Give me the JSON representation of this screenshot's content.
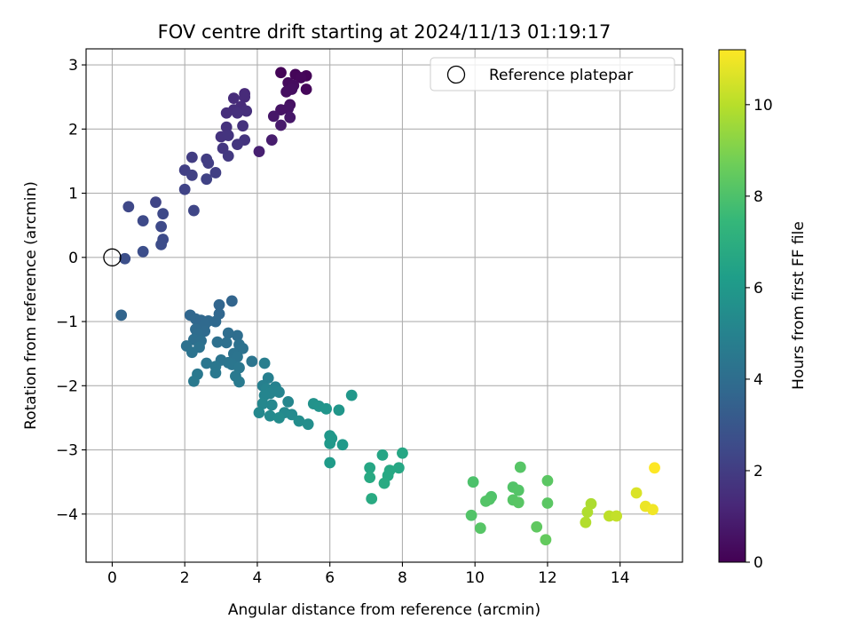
{
  "chart_data": {
    "type": "scatter",
    "title": "FOV centre drift starting at 2024/11/13 01:19:17",
    "xlabel": "Angular distance from reference (arcmin)",
    "ylabel": "Rotation from reference (arcmin)",
    "xlim": [
      -0.72,
      15.72
    ],
    "ylim": [
      -4.75,
      3.25
    ],
    "xticks": [
      0,
      2,
      4,
      6,
      8,
      10,
      12,
      14
    ],
    "yticks": [
      3,
      2,
      1,
      0,
      -1,
      -2,
      -3,
      -4
    ],
    "xtick_labels": [
      "0",
      "2",
      "4",
      "6",
      "8",
      "10",
      "12",
      "14"
    ],
    "ytick_labels": [
      "3",
      "2",
      "1",
      "0",
      "−1",
      "−2",
      "−3",
      "−4"
    ],
    "grid": true,
    "legend": {
      "placement": "top-right",
      "label": "Reference platepar"
    },
    "reference_point": {
      "x": 0,
      "y": 0
    },
    "colorbar": {
      "label": "Hours from first FF file",
      "range": [
        0,
        11.2
      ],
      "ticks": [
        0,
        2,
        4,
        6,
        8,
        10
      ],
      "tick_labels": [
        "0",
        "2",
        "4",
        "6",
        "8",
        "10"
      ],
      "colormap": [
        "#440154",
        "#482878",
        "#3e4a89",
        "#31688e",
        "#26828e",
        "#1f9e89",
        "#35b779",
        "#6ece58",
        "#b5de2b",
        "#fde725"
      ]
    },
    "points": [
      {
        "x": 4.65,
        "y": 2.88,
        "t": 0.1
      },
      {
        "x": 5.05,
        "y": 2.85,
        "t": 0.15
      },
      {
        "x": 5.35,
        "y": 2.83,
        "t": 0.1
      },
      {
        "x": 5.2,
        "y": 2.8,
        "t": 0.2
      },
      {
        "x": 4.85,
        "y": 2.72,
        "t": 0.3
      },
      {
        "x": 5.0,
        "y": 2.68,
        "t": 0.35
      },
      {
        "x": 4.95,
        "y": 2.62,
        "t": 0.4
      },
      {
        "x": 4.8,
        "y": 2.58,
        "t": 0.4
      },
      {
        "x": 5.35,
        "y": 2.62,
        "t": 0.2
      },
      {
        "x": 4.9,
        "y": 2.38,
        "t": 0.5
      },
      {
        "x": 4.85,
        "y": 2.32,
        "t": 0.6
      },
      {
        "x": 4.65,
        "y": 2.3,
        "t": 0.6
      },
      {
        "x": 4.45,
        "y": 2.2,
        "t": 0.7
      },
      {
        "x": 4.9,
        "y": 2.18,
        "t": 0.7
      },
      {
        "x": 4.65,
        "y": 2.06,
        "t": 0.8
      },
      {
        "x": 4.4,
        "y": 1.83,
        "t": 0.9
      },
      {
        "x": 4.05,
        "y": 1.65,
        "t": 1.0
      },
      {
        "x": 3.65,
        "y": 2.55,
        "t": 1.3
      },
      {
        "x": 3.65,
        "y": 2.5,
        "t": 1.35
      },
      {
        "x": 3.35,
        "y": 2.48,
        "t": 1.4
      },
      {
        "x": 3.55,
        "y": 2.35,
        "t": 1.4
      },
      {
        "x": 3.35,
        "y": 2.3,
        "t": 1.45
      },
      {
        "x": 3.7,
        "y": 2.28,
        "t": 1.5
      },
      {
        "x": 3.15,
        "y": 2.25,
        "t": 1.5
      },
      {
        "x": 3.45,
        "y": 2.25,
        "t": 1.55
      },
      {
        "x": 3.6,
        "y": 2.05,
        "t": 1.6
      },
      {
        "x": 3.15,
        "y": 2.03,
        "t": 1.6
      },
      {
        "x": 3.0,
        "y": 1.88,
        "t": 1.65
      },
      {
        "x": 3.2,
        "y": 1.9,
        "t": 1.7
      },
      {
        "x": 3.65,
        "y": 1.83,
        "t": 1.7
      },
      {
        "x": 3.45,
        "y": 1.76,
        "t": 1.75
      },
      {
        "x": 3.05,
        "y": 1.7,
        "t": 1.8
      },
      {
        "x": 3.2,
        "y": 1.58,
        "t": 1.85
      },
      {
        "x": 2.2,
        "y": 1.56,
        "t": 2.0
      },
      {
        "x": 2.6,
        "y": 1.53,
        "t": 2.0
      },
      {
        "x": 2.65,
        "y": 1.47,
        "t": 2.05
      },
      {
        "x": 2.0,
        "y": 1.36,
        "t": 2.1
      },
      {
        "x": 2.85,
        "y": 1.32,
        "t": 2.1
      },
      {
        "x": 2.2,
        "y": 1.28,
        "t": 2.15
      },
      {
        "x": 2.6,
        "y": 1.22,
        "t": 2.2
      },
      {
        "x": 2.0,
        "y": 1.06,
        "t": 2.25
      },
      {
        "x": 1.2,
        "y": 0.86,
        "t": 2.3
      },
      {
        "x": 0.45,
        "y": 0.79,
        "t": 2.4
      },
      {
        "x": 2.25,
        "y": 0.73,
        "t": 2.35
      },
      {
        "x": 1.4,
        "y": 0.68,
        "t": 2.45
      },
      {
        "x": 0.85,
        "y": 0.57,
        "t": 2.5
      },
      {
        "x": 1.35,
        "y": 0.48,
        "t": 2.5
      },
      {
        "x": 1.4,
        "y": 0.28,
        "t": 2.55
      },
      {
        "x": 1.35,
        "y": 0.2,
        "t": 2.6
      },
      {
        "x": 0.85,
        "y": 0.09,
        "t": 2.65
      },
      {
        "x": 0.35,
        "y": -0.02,
        "t": 2.7
      },
      {
        "x": 0.25,
        "y": -0.9,
        "t": 3.6
      },
      {
        "x": 3.3,
        "y": -0.68,
        "t": 3.6
      },
      {
        "x": 2.95,
        "y": -0.74,
        "t": 3.65
      },
      {
        "x": 2.15,
        "y": -0.9,
        "t": 3.7
      },
      {
        "x": 2.95,
        "y": -0.88,
        "t": 3.7
      },
      {
        "x": 2.3,
        "y": -0.96,
        "t": 3.75
      },
      {
        "x": 2.45,
        "y": -0.98,
        "t": 3.75
      },
      {
        "x": 2.65,
        "y": -0.99,
        "t": 3.8
      },
      {
        "x": 2.85,
        "y": -1.0,
        "t": 3.8
      },
      {
        "x": 2.55,
        "y": -1.05,
        "t": 3.85
      },
      {
        "x": 2.3,
        "y": -1.12,
        "t": 3.9
      },
      {
        "x": 2.55,
        "y": -1.15,
        "t": 3.9
      },
      {
        "x": 2.35,
        "y": -1.2,
        "t": 3.95
      },
      {
        "x": 3.2,
        "y": -1.18,
        "t": 4.0
      },
      {
        "x": 3.45,
        "y": -1.22,
        "t": 4.0
      },
      {
        "x": 2.25,
        "y": -1.28,
        "t": 4.05
      },
      {
        "x": 2.45,
        "y": -1.3,
        "t": 4.05
      },
      {
        "x": 2.9,
        "y": -1.32,
        "t": 4.1
      },
      {
        "x": 3.15,
        "y": -1.33,
        "t": 4.1
      },
      {
        "x": 2.05,
        "y": -1.38,
        "t": 4.15
      },
      {
        "x": 3.5,
        "y": -1.36,
        "t": 4.15
      },
      {
        "x": 2.4,
        "y": -1.4,
        "t": 4.2
      },
      {
        "x": 3.6,
        "y": -1.42,
        "t": 4.2
      },
      {
        "x": 2.2,
        "y": -1.48,
        "t": 4.25
      },
      {
        "x": 3.35,
        "y": -1.5,
        "t": 4.25
      },
      {
        "x": 3.45,
        "y": -1.55,
        "t": 4.3
      },
      {
        "x": 3.0,
        "y": -1.6,
        "t": 4.3
      },
      {
        "x": 3.85,
        "y": -1.62,
        "t": 4.35
      },
      {
        "x": 3.2,
        "y": -1.64,
        "t": 4.35
      },
      {
        "x": 2.6,
        "y": -1.65,
        "t": 4.4
      },
      {
        "x": 3.3,
        "y": -1.67,
        "t": 4.4
      },
      {
        "x": 2.85,
        "y": -1.7,
        "t": 4.45
      },
      {
        "x": 3.5,
        "y": -1.72,
        "t": 4.45
      },
      {
        "x": 2.85,
        "y": -1.8,
        "t": 4.5
      },
      {
        "x": 2.35,
        "y": -1.82,
        "t": 4.5
      },
      {
        "x": 3.4,
        "y": -1.85,
        "t": 4.55
      },
      {
        "x": 2.25,
        "y": -1.93,
        "t": 4.55
      },
      {
        "x": 3.5,
        "y": -1.94,
        "t": 4.6
      },
      {
        "x": 4.2,
        "y": -1.65,
        "t": 4.8
      },
      {
        "x": 4.3,
        "y": -1.88,
        "t": 4.85
      },
      {
        "x": 4.15,
        "y": -2.0,
        "t": 4.9
      },
      {
        "x": 4.5,
        "y": -2.02,
        "t": 4.95
      },
      {
        "x": 4.25,
        "y": -2.05,
        "t": 5.0
      },
      {
        "x": 4.45,
        "y": -2.08,
        "t": 5.0
      },
      {
        "x": 4.35,
        "y": -2.12,
        "t": 5.05
      },
      {
        "x": 4.6,
        "y": -2.1,
        "t": 5.05
      },
      {
        "x": 4.2,
        "y": -2.15,
        "t": 5.1
      },
      {
        "x": 4.85,
        "y": -2.25,
        "t": 5.15
      },
      {
        "x": 4.15,
        "y": -2.28,
        "t": 5.2
      },
      {
        "x": 4.4,
        "y": -2.3,
        "t": 5.2
      },
      {
        "x": 4.05,
        "y": -2.42,
        "t": 5.25
      },
      {
        "x": 4.75,
        "y": -2.42,
        "t": 5.3
      },
      {
        "x": 4.95,
        "y": -2.45,
        "t": 5.35
      },
      {
        "x": 4.35,
        "y": -2.47,
        "t": 5.35
      },
      {
        "x": 4.6,
        "y": -2.5,
        "t": 5.4
      },
      {
        "x": 5.15,
        "y": -2.55,
        "t": 5.45
      },
      {
        "x": 5.4,
        "y": -2.6,
        "t": 5.5
      },
      {
        "x": 6.6,
        "y": -2.15,
        "t": 5.9
      },
      {
        "x": 5.55,
        "y": -2.28,
        "t": 5.7
      },
      {
        "x": 5.7,
        "y": -2.32,
        "t": 5.75
      },
      {
        "x": 5.9,
        "y": -2.36,
        "t": 5.8
      },
      {
        "x": 6.25,
        "y": -2.38,
        "t": 5.85
      },
      {
        "x": 6.0,
        "y": -2.78,
        "t": 5.9
      },
      {
        "x": 6.05,
        "y": -2.82,
        "t": 5.95
      },
      {
        "x": 6.0,
        "y": -2.9,
        "t": 6.0
      },
      {
        "x": 6.35,
        "y": -2.92,
        "t": 6.05
      },
      {
        "x": 6.0,
        "y": -3.2,
        "t": 6.1
      },
      {
        "x": 8.0,
        "y": -3.05,
        "t": 6.6
      },
      {
        "x": 7.45,
        "y": -3.08,
        "t": 6.55
      },
      {
        "x": 7.1,
        "y": -3.28,
        "t": 6.6
      },
      {
        "x": 7.9,
        "y": -3.28,
        "t": 6.65
      },
      {
        "x": 7.65,
        "y": -3.32,
        "t": 6.7
      },
      {
        "x": 7.6,
        "y": -3.4,
        "t": 6.7
      },
      {
        "x": 7.1,
        "y": -3.43,
        "t": 6.75
      },
      {
        "x": 7.5,
        "y": -3.52,
        "t": 6.8
      },
      {
        "x": 7.15,
        "y": -3.76,
        "t": 6.8
      },
      {
        "x": 11.25,
        "y": -3.27,
        "t": 8.2
      },
      {
        "x": 12.0,
        "y": -3.48,
        "t": 8.3
      },
      {
        "x": 9.95,
        "y": -3.5,
        "t": 8.0
      },
      {
        "x": 11.05,
        "y": -3.58,
        "t": 8.1
      },
      {
        "x": 11.2,
        "y": -3.63,
        "t": 8.15
      },
      {
        "x": 10.45,
        "y": -3.73,
        "t": 8.05
      },
      {
        "x": 10.4,
        "y": -3.77,
        "t": 8.1
      },
      {
        "x": 11.05,
        "y": -3.78,
        "t": 8.2
      },
      {
        "x": 10.3,
        "y": -3.8,
        "t": 8.15
      },
      {
        "x": 11.2,
        "y": -3.82,
        "t": 8.25
      },
      {
        "x": 12.0,
        "y": -3.83,
        "t": 8.3
      },
      {
        "x": 9.9,
        "y": -4.02,
        "t": 8.1
      },
      {
        "x": 11.7,
        "y": -4.2,
        "t": 8.4
      },
      {
        "x": 10.15,
        "y": -4.22,
        "t": 8.2
      },
      {
        "x": 11.95,
        "y": -4.4,
        "t": 8.5
      },
      {
        "x": 13.2,
        "y": -3.84,
        "t": 9.8
      },
      {
        "x": 13.1,
        "y": -3.97,
        "t": 9.85
      },
      {
        "x": 13.7,
        "y": -4.03,
        "t": 10.1
      },
      {
        "x": 13.9,
        "y": -4.03,
        "t": 10.2
      },
      {
        "x": 13.05,
        "y": -4.13,
        "t": 9.9
      },
      {
        "x": 14.45,
        "y": -3.67,
        "t": 10.6
      },
      {
        "x": 14.7,
        "y": -3.88,
        "t": 10.9
      },
      {
        "x": 14.9,
        "y": -3.93,
        "t": 11.0
      },
      {
        "x": 14.95,
        "y": -3.28,
        "t": 11.2
      }
    ]
  }
}
